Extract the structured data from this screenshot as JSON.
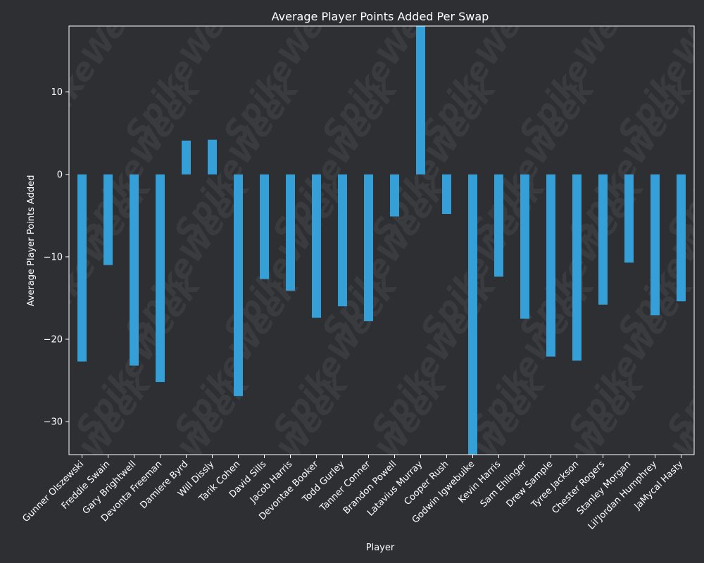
{
  "chart_data": {
    "type": "bar",
    "title": "Average Player Points Added Per Swap",
    "xlabel": "Player",
    "ylabel": "Average Player Points Added",
    "ylim": [
      -34,
      18
    ],
    "yticks": [
      -30,
      -20,
      -10,
      0,
      10
    ],
    "grid": false,
    "legend": "none",
    "categories": [
      "Gunner Olszewski",
      "Freddie Swain",
      "Gary Brightwell",
      "Devonta Freeman",
      "Damiere Byrd",
      "Will Dissly",
      "Tarik Cohen",
      "David Sills",
      "Jacob Harris",
      "Devontae Booker",
      "Todd Gurley",
      "Tanner Conner",
      "Brandon Powell",
      "Latavius Murray",
      "Cooper Rush",
      "Godwin Igwebuike",
      "Kevin Harris",
      "Sam Ehlinger",
      "Drew Sample",
      "Tyree Jackson",
      "Chester Rogers",
      "Stanley Morgan",
      "Lil'Jordan Humphrey",
      "JaMycal Hasty"
    ],
    "values": [
      -22.7,
      -11.0,
      -23.2,
      -25.2,
      4.1,
      4.2,
      -26.9,
      -12.7,
      -14.1,
      -17.4,
      -16.0,
      -17.8,
      -5.1,
      18.5,
      -4.8,
      -34.5,
      -12.4,
      -17.5,
      -22.1,
      -22.6,
      -15.8,
      -10.7,
      -17.1,
      -15.4
    ]
  },
  "colors": {
    "background": "#2e2f33",
    "bar": "#35a0d8",
    "text": "#ffffff",
    "axis": "#ffffff",
    "watermark": "#3a3b3f"
  },
  "watermark": {
    "text": "SpikeWeek"
  }
}
